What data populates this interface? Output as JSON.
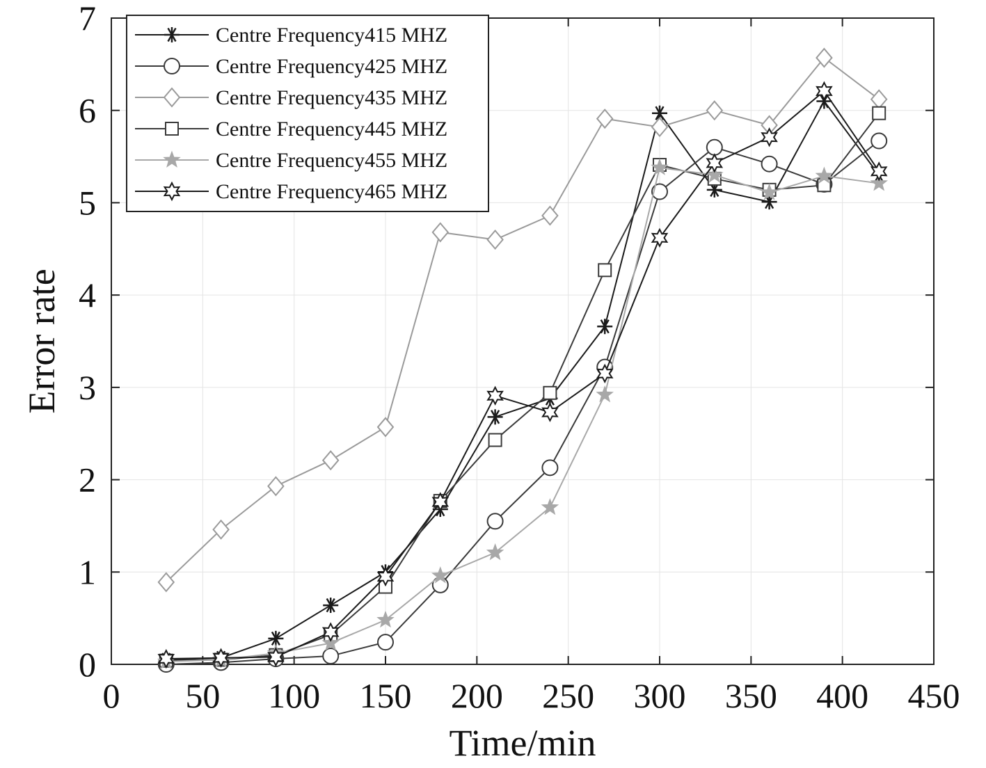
{
  "chart_data": {
    "type": "line",
    "title": "",
    "xlabel": "Time/min",
    "ylabel": "Error rate",
    "xlim": [
      0,
      450
    ],
    "ylim": [
      0,
      7
    ],
    "xticks": [
      0,
      50,
      100,
      150,
      200,
      250,
      300,
      350,
      400,
      450
    ],
    "yticks": [
      0,
      1,
      2,
      3,
      4,
      5,
      6,
      7
    ],
    "grid": true,
    "legend_position": "top-left",
    "x": [
      30,
      60,
      90,
      120,
      150,
      180,
      210,
      240,
      270,
      300,
      330,
      360,
      390,
      420
    ],
    "series": [
      {
        "name": "Centre Frequency415 MHZ",
        "marker": "asterisk",
        "color": "#1a1a1a",
        "values": [
          0.05,
          0.07,
          0.28,
          0.64,
          1.0,
          1.68,
          2.68,
          2.88,
          3.66,
          5.97,
          5.14,
          5.01,
          6.1,
          5.3
        ]
      },
      {
        "name": "Centre Frequency425 MHZ",
        "marker": "circle",
        "color": "#3a3a3a",
        "values": [
          0.0,
          0.02,
          0.06,
          0.09,
          0.24,
          0.86,
          1.55,
          2.13,
          3.22,
          5.12,
          5.6,
          5.42,
          5.2,
          5.67
        ]
      },
      {
        "name": "Centre Frequency435 MHZ",
        "marker": "diamond",
        "color": "#9a9a9a",
        "values": [
          0.89,
          1.46,
          1.93,
          2.21,
          2.57,
          4.68,
          4.6,
          4.86,
          5.91,
          5.82,
          6.0,
          5.84,
          6.57,
          6.12
        ]
      },
      {
        "name": "Centre Frequency445 MHZ",
        "marker": "square",
        "color": "#3a3a3a",
        "values": [
          0.04,
          0.05,
          0.1,
          0.32,
          0.84,
          1.77,
          2.43,
          2.94,
          4.27,
          5.41,
          5.26,
          5.14,
          5.19,
          5.97
        ]
      },
      {
        "name": "Centre Frequency455 MHZ",
        "marker": "star5",
        "color": "#a8a8a8",
        "values": [
          0.03,
          0.05,
          0.12,
          0.23,
          0.48,
          0.96,
          1.21,
          1.7,
          2.92,
          5.38,
          5.3,
          5.11,
          5.29,
          5.21
        ]
      },
      {
        "name": "Centre Frequency465 MHZ",
        "marker": "hexagram",
        "color": "#1a1a1a",
        "values": [
          0.06,
          0.07,
          0.08,
          0.35,
          0.95,
          1.76,
          2.91,
          2.73,
          3.15,
          4.62,
          5.43,
          5.71,
          6.21,
          5.34
        ]
      }
    ]
  }
}
